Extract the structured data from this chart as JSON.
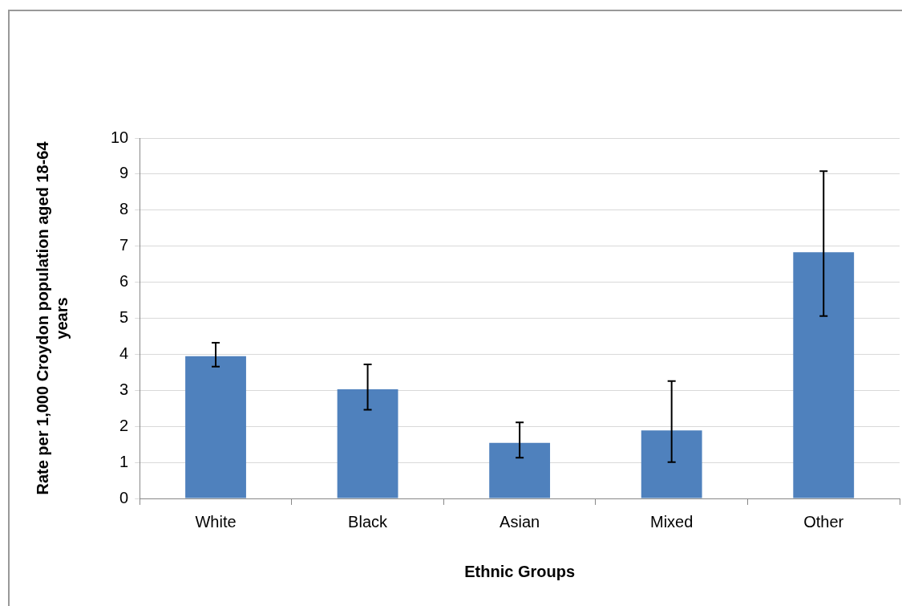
{
  "chart_data": {
    "type": "bar",
    "xlabel": "Ethnic Groups",
    "ylabel": "Rate per 1,000 Croydon population aged 18-64 years",
    "categories": [
      "White",
      "Black",
      "Asian",
      "Mixed",
      "Other"
    ],
    "values": [
      3.95,
      3.03,
      1.54,
      1.89,
      6.83
    ],
    "errors": [
      [
        3.66,
        4.32
      ],
      [
        2.46,
        3.72
      ],
      [
        1.13,
        2.11
      ],
      [
        1.01,
        3.26
      ],
      [
        5.06,
        9.08
      ]
    ],
    "color": "#4f81bd",
    "ylim": [
      0,
      10
    ],
    "yticks": [
      0,
      1,
      2,
      3,
      4,
      5,
      6,
      7,
      8,
      9,
      10
    ],
    "grid": "y",
    "legend": false
  }
}
